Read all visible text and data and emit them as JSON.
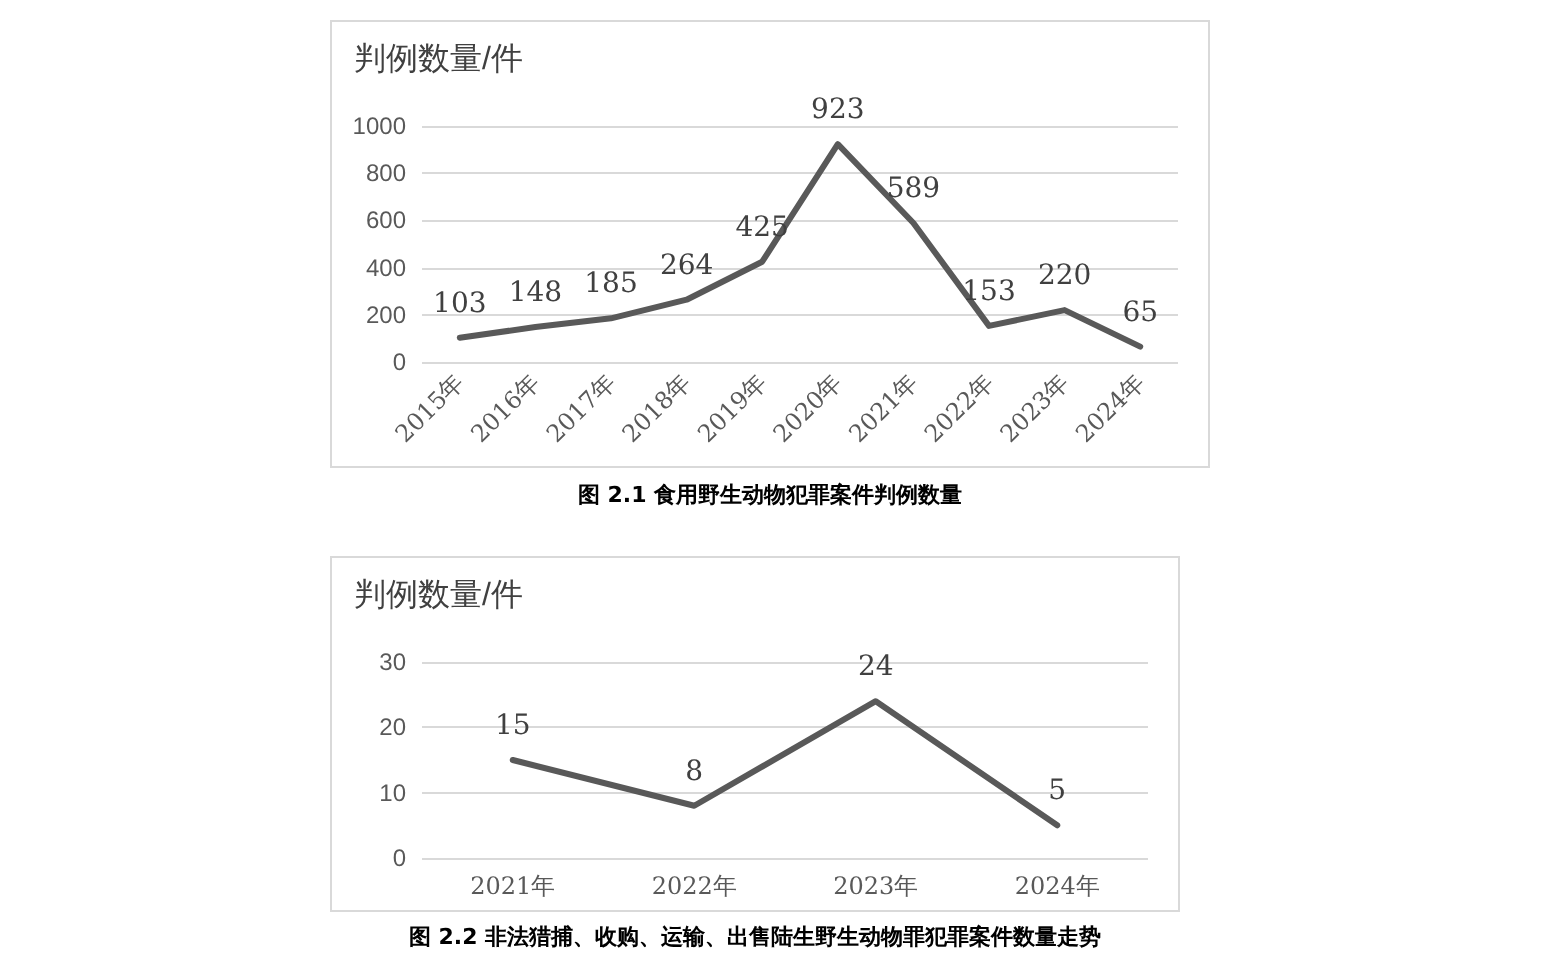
{
  "chart_data": [
    {
      "type": "line",
      "title": "判例数量/件",
      "categories": [
        "2015年",
        "2016年",
        "2017年",
        "2018年",
        "2019年",
        "2020年",
        "2021年",
        "2022年",
        "2023年",
        "2024年"
      ],
      "series": [
        {
          "color": "#595959",
          "values": [
            103,
            148,
            185,
            264,
            425,
            923,
            589,
            153,
            220,
            65
          ]
        }
      ],
      "ylim": [
        0,
        1000
      ],
      "yticks": [
        0,
        200,
        400,
        600,
        800,
        1000
      ],
      "grid": "y",
      "data_labels": true,
      "marker": "none",
      "line_style": "solid",
      "annotations": [
        "图 2.1 食用野生动物犯罪案件判例数量"
      ]
    },
    {
      "type": "line",
      "title": "判例数量/件",
      "categories": [
        "2021年",
        "2022年",
        "2023年",
        "2024年"
      ],
      "series": [
        {
          "color": "#595959",
          "values": [
            15,
            8,
            24,
            5
          ]
        }
      ],
      "ylim": [
        0,
        30
      ],
      "yticks": [
        0,
        10,
        20,
        30
      ],
      "grid": "y",
      "data_labels": true,
      "marker": "none",
      "line_style": "solid",
      "annotations": [
        "图 2.2 非法猎捕、收购、运输、出售陆生野生动物罪犯罪案件数量走势"
      ]
    }
  ]
}
